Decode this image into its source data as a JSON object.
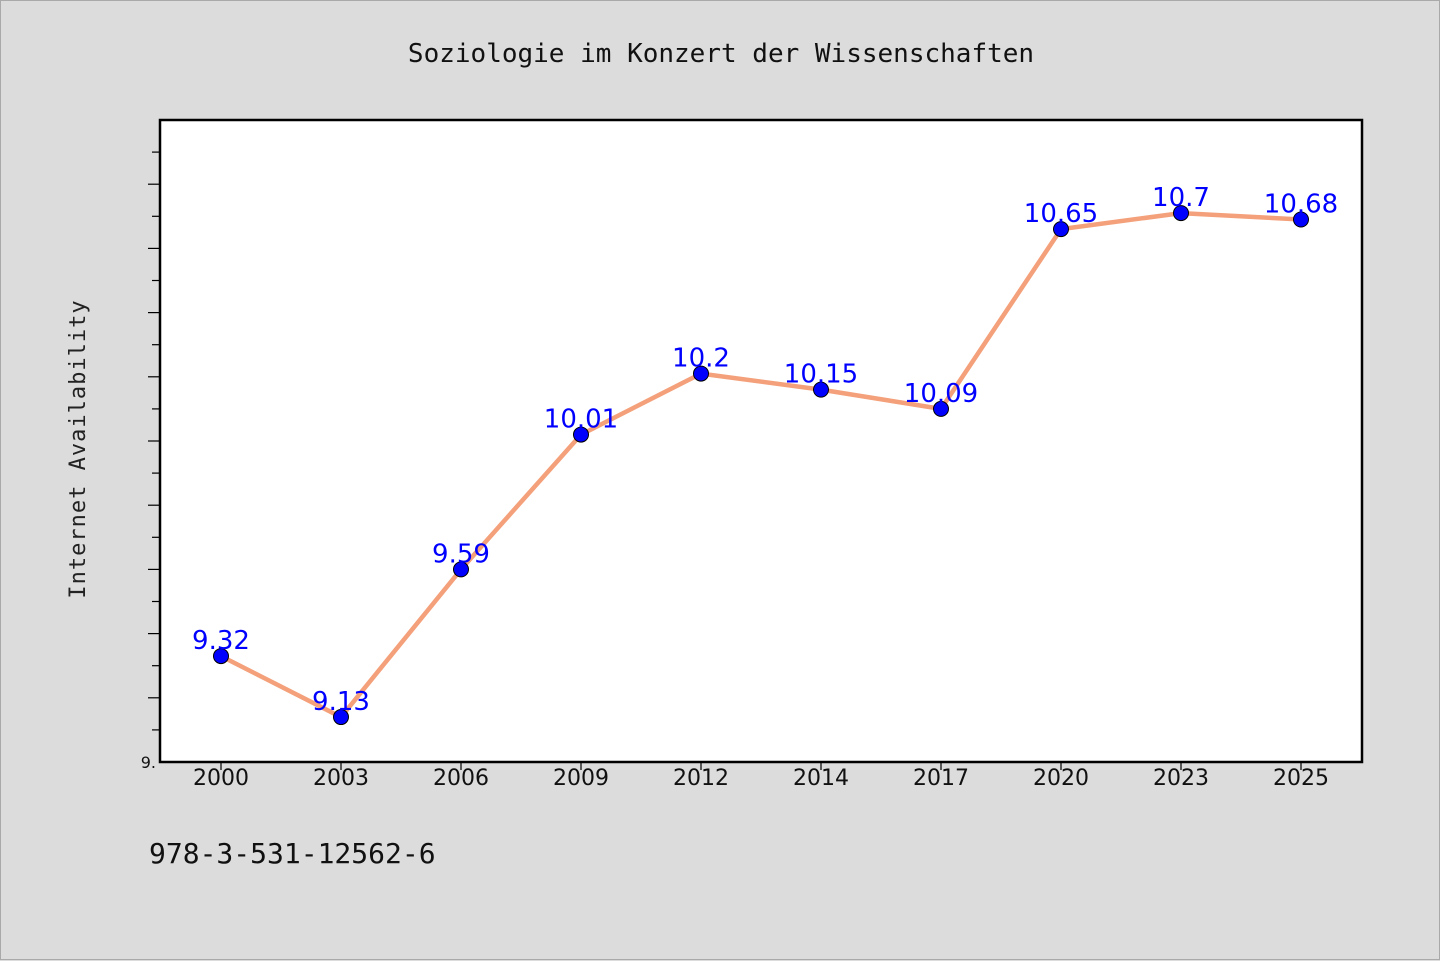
{
  "chart_data": {
    "type": "line",
    "title": "Soziologie im Konzert der Wissenschaften",
    "xlabel": "",
    "ylabel": "Internet Availability",
    "categories": [
      "2000",
      "2003",
      "2006",
      "2009",
      "2012",
      "2014",
      "2017",
      "2020",
      "2023",
      "2025"
    ],
    "series": [
      {
        "values": [
          9.32,
          9.13,
          9.59,
          10.01,
          10.2,
          10.15,
          10.09,
          10.65,
          10.7,
          10.68
        ],
        "data_labels": [
          "9.32",
          "9.13",
          "9.59",
          "10.01",
          "10.2",
          "10.15",
          "10.09",
          "10.65",
          "10.7",
          "10.68"
        ],
        "line_color": "#f4a07a",
        "marker_color": "#0000ff"
      }
    ],
    "ylim": [
      8.99,
      10.99
    ],
    "y_tick_labels": [
      "9."
    ],
    "grid": false,
    "legend": "none"
  },
  "footer": {
    "isbn": "978-3-531-12562-6"
  },
  "colors": {
    "background": "#dcdcdc",
    "plot_background": "#ffffff",
    "line": "#f4a07a",
    "marker": "#0000ff",
    "data_label": "#0000ff"
  }
}
